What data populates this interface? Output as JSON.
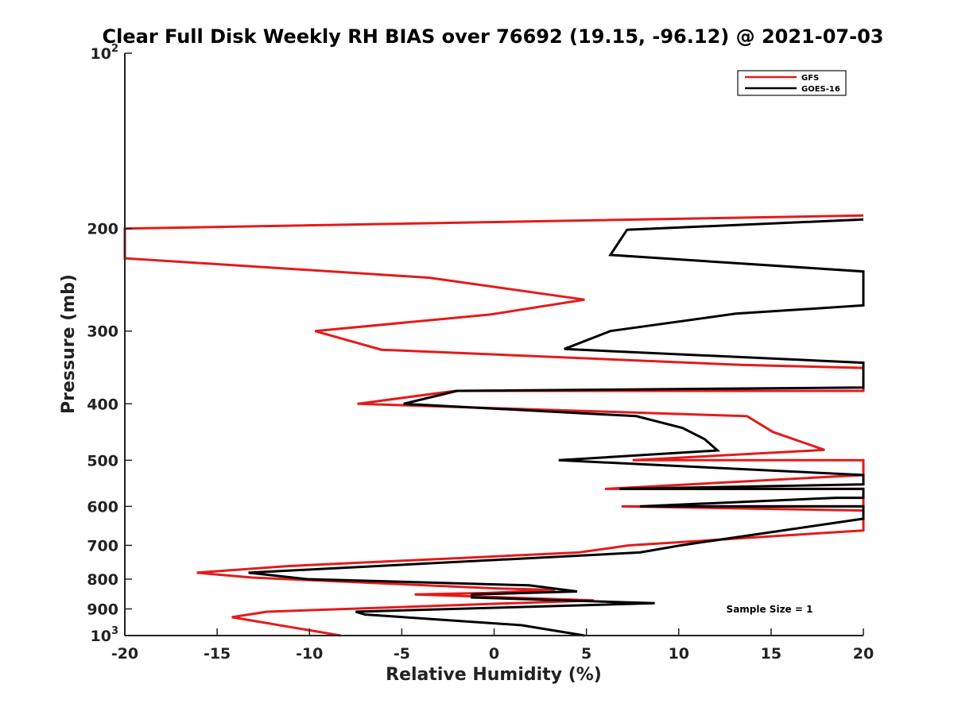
{
  "chart_data": {
    "type": "line",
    "title": "Clear Full Disk Weekly RH BIAS over 76692 (19.15, -96.12) @ 2021-07-03",
    "xlabel": "Relative Humidity (%)",
    "ylabel": "Pressure (mb)",
    "xlim": [
      -20,
      20
    ],
    "ylim": [
      100,
      1000
    ],
    "yscale": "log",
    "y_reversed": true,
    "grid": false,
    "legend_position": "top-right",
    "x_ticks": [
      -20,
      -15,
      -10,
      -5,
      0,
      5,
      10,
      15,
      20
    ],
    "x_tick_labels": [
      "-20",
      "-15",
      "-10",
      "-5",
      "0",
      "5",
      "10",
      "15",
      "20"
    ],
    "y_ticks": [
      100,
      200,
      300,
      400,
      500,
      600,
      700,
      800,
      900,
      1000
    ],
    "y_tick_labels": [
      {
        "value": 100,
        "base": "10",
        "exp": "2"
      },
      {
        "value": 200,
        "base": "200",
        "exp": ""
      },
      {
        "value": 300,
        "base": "300",
        "exp": ""
      },
      {
        "value": 400,
        "base": "400",
        "exp": ""
      },
      {
        "value": 500,
        "base": "500",
        "exp": ""
      },
      {
        "value": 600,
        "base": "600",
        "exp": ""
      },
      {
        "value": 700,
        "base": "700",
        "exp": ""
      },
      {
        "value": 800,
        "base": "800",
        "exp": ""
      },
      {
        "value": 900,
        "base": "900",
        "exp": ""
      },
      {
        "value": 1000,
        "base": "10",
        "exp": "3"
      }
    ],
    "annotation": "Sample Size = 1",
    "series": [
      {
        "name": "GFS",
        "color": "#e41a1c",
        "x": [
          20,
          -20,
          -20,
          -3.5,
          4.9,
          -0.2,
          -9.7,
          -6.1,
          13.5,
          20,
          20,
          -2.1,
          -7.4,
          13.7,
          15.1,
          17.9,
          7.5,
          20,
          20,
          6,
          20,
          20,
          6.9,
          20,
          20,
          7.3,
          4.6,
          -11.2,
          -16.1,
          -13.1,
          0.2,
          3.3,
          -0.4,
          -4.3,
          5.4,
          -12.3,
          -14.2,
          -8.3
        ],
        "y": [
          190,
          200,
          225,
          243,
          265,
          281,
          300,
          323,
          343,
          347,
          380,
          380,
          400,
          420,
          447,
          480,
          500,
          500,
          530,
          560,
          560,
          600,
          600,
          610,
          660,
          700,
          720,
          760,
          780,
          795,
          830,
          835,
          845,
          850,
          870,
          910,
          930,
          1000
        ]
      },
      {
        "name": "GOES-16",
        "color": "#000000",
        "x": [
          20,
          7.2,
          6.3,
          20,
          20,
          13.1,
          6.3,
          3.8,
          20,
          20,
          20,
          -2.0,
          -4.9,
          7.7,
          10.2,
          11.4,
          12.1,
          3.5,
          20,
          20,
          6.8,
          20,
          20,
          18.5,
          7.9,
          20,
          20,
          10.1,
          7.9,
          -13.3,
          -10.1,
          1.9,
          4.5,
          -1.2,
          -1.2,
          8.7,
          -7.5,
          -7.0,
          1.5,
          4.9
        ],
        "y": [
          193,
          201,
          222,
          237,
          271,
          280,
          300,
          322,
          340,
          340,
          375,
          380,
          400,
          420,
          440,
          460,
          481,
          500,
          530,
          550,
          560,
          560,
          580,
          580,
          600,
          600,
          630,
          700,
          720,
          780,
          800,
          820,
          840,
          850,
          860,
          880,
          910,
          920,
          960,
          1000
        ]
      }
    ]
  }
}
